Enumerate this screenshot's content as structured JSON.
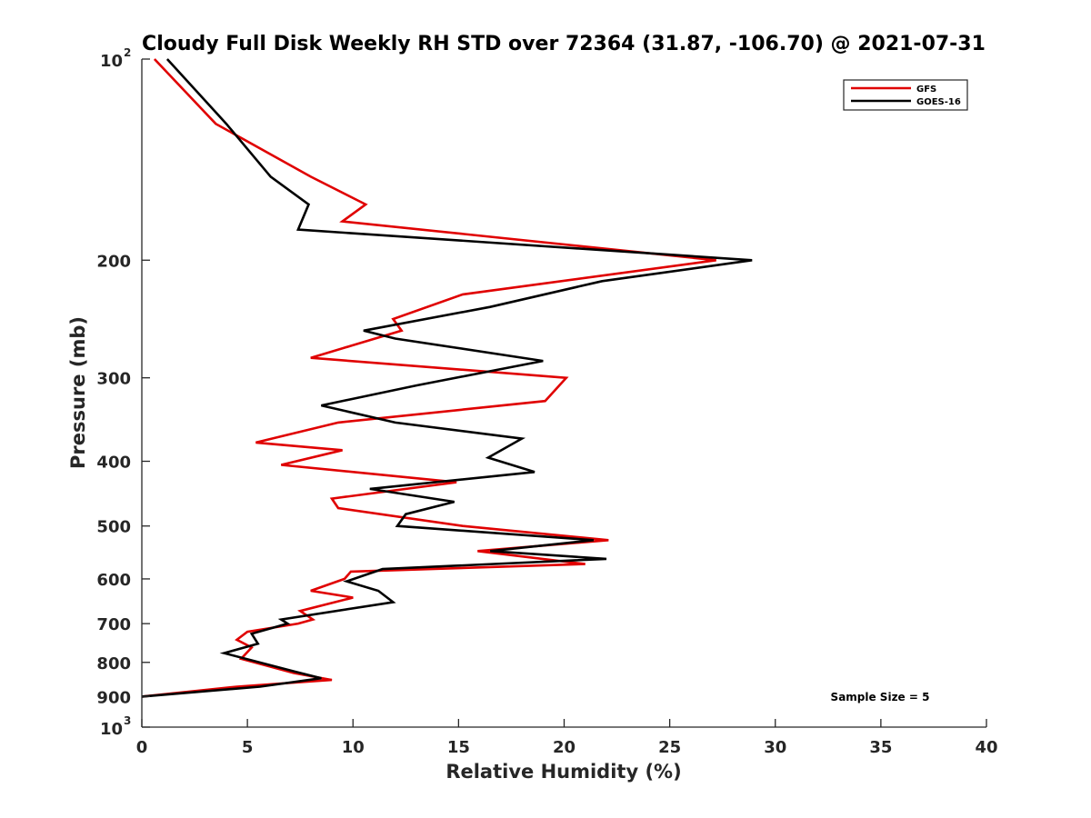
{
  "chart_data": {
    "type": "line",
    "title": "Cloudy Full Disk Weekly RH STD over 72364 (31.87, -106.70) @ 2021-07-31",
    "xlabel": "Relative Humidity (%)",
    "ylabel": "Pressure (mb)",
    "xlim": [
      0,
      40
    ],
    "ylim": [
      100,
      1000
    ],
    "y_scale": "log",
    "y_reversed": true,
    "grid": false,
    "legend_position": "top-right",
    "x_ticks": [
      "0",
      "5",
      "10",
      "15",
      "20",
      "25",
      "30",
      "35",
      "40"
    ],
    "y_ticks": [
      {
        "value": 100,
        "base": "10",
        "exp": "2"
      },
      {
        "value": 200,
        "label": "200"
      },
      {
        "value": 300,
        "label": "300"
      },
      {
        "value": 400,
        "label": "400"
      },
      {
        "value": 500,
        "label": "500"
      },
      {
        "value": 600,
        "label": "600"
      },
      {
        "value": 700,
        "label": "700"
      },
      {
        "value": 800,
        "label": "800"
      },
      {
        "value": 900,
        "label": "900"
      },
      {
        "value": 1000,
        "base": "10",
        "exp": "3"
      }
    ],
    "annotation": "Sample Size = 5",
    "series": [
      {
        "name": "GFS",
        "color": "#e00000",
        "points": [
          [
            0.6,
            100
          ],
          [
            3.5,
            125
          ],
          [
            8,
            150
          ],
          [
            10.6,
            165
          ],
          [
            9.5,
            175
          ],
          [
            27.2,
            200
          ],
          [
            15.2,
            225
          ],
          [
            11.9,
            245
          ],
          [
            12.3,
            255
          ],
          [
            8.0,
            280
          ],
          [
            20.1,
            300
          ],
          [
            19.1,
            325
          ],
          [
            9.3,
            350
          ],
          [
            5.4,
            375
          ],
          [
            9.5,
            385
          ],
          [
            6.6,
            405
          ],
          [
            14.9,
            430
          ],
          [
            9.0,
            455
          ],
          [
            9.3,
            470
          ],
          [
            15.2,
            500
          ],
          [
            22.1,
            525
          ],
          [
            15.9,
            545
          ],
          [
            21.0,
            570
          ],
          [
            9.9,
            585
          ],
          [
            9.6,
            600
          ],
          [
            8.0,
            625
          ],
          [
            10.0,
            640
          ],
          [
            7.5,
            670
          ],
          [
            8.1,
            690
          ],
          [
            7.4,
            700
          ],
          [
            5.0,
            720
          ],
          [
            4.5,
            740
          ],
          [
            5.2,
            760
          ],
          [
            4.7,
            790
          ],
          [
            7.2,
            830
          ],
          [
            9.0,
            850
          ],
          [
            4.5,
            870
          ],
          [
            0,
            900
          ]
        ]
      },
      {
        "name": "GOES-16",
        "color": "#000000",
        "points": [
          [
            1.2,
            100
          ],
          [
            4.0,
            125
          ],
          [
            6.1,
            150
          ],
          [
            7.9,
            165
          ],
          [
            7.4,
            180
          ],
          [
            28.9,
            200
          ],
          [
            21.8,
            215
          ],
          [
            16.5,
            235
          ],
          [
            10.5,
            255
          ],
          [
            12.0,
            262
          ],
          [
            19.0,
            283
          ],
          [
            13.0,
            308
          ],
          [
            8.5,
            330
          ],
          [
            12.0,
            350
          ],
          [
            18.0,
            370
          ],
          [
            16.4,
            395
          ],
          [
            18.6,
            415
          ],
          [
            10.8,
            440
          ],
          [
            14.8,
            460
          ],
          [
            12.5,
            480
          ],
          [
            12.1,
            500
          ],
          [
            21.4,
            525
          ],
          [
            16.5,
            545
          ],
          [
            22.0,
            560
          ],
          [
            11.4,
            580
          ],
          [
            9.7,
            605
          ],
          [
            11.2,
            625
          ],
          [
            11.9,
            650
          ],
          [
            6.6,
            690
          ],
          [
            6.9,
            700
          ],
          [
            5.2,
            725
          ],
          [
            5.5,
            750
          ],
          [
            3.9,
            775
          ],
          [
            7.2,
            825
          ],
          [
            8.5,
            845
          ],
          [
            5.6,
            870
          ],
          [
            0,
            900
          ]
        ]
      }
    ]
  }
}
